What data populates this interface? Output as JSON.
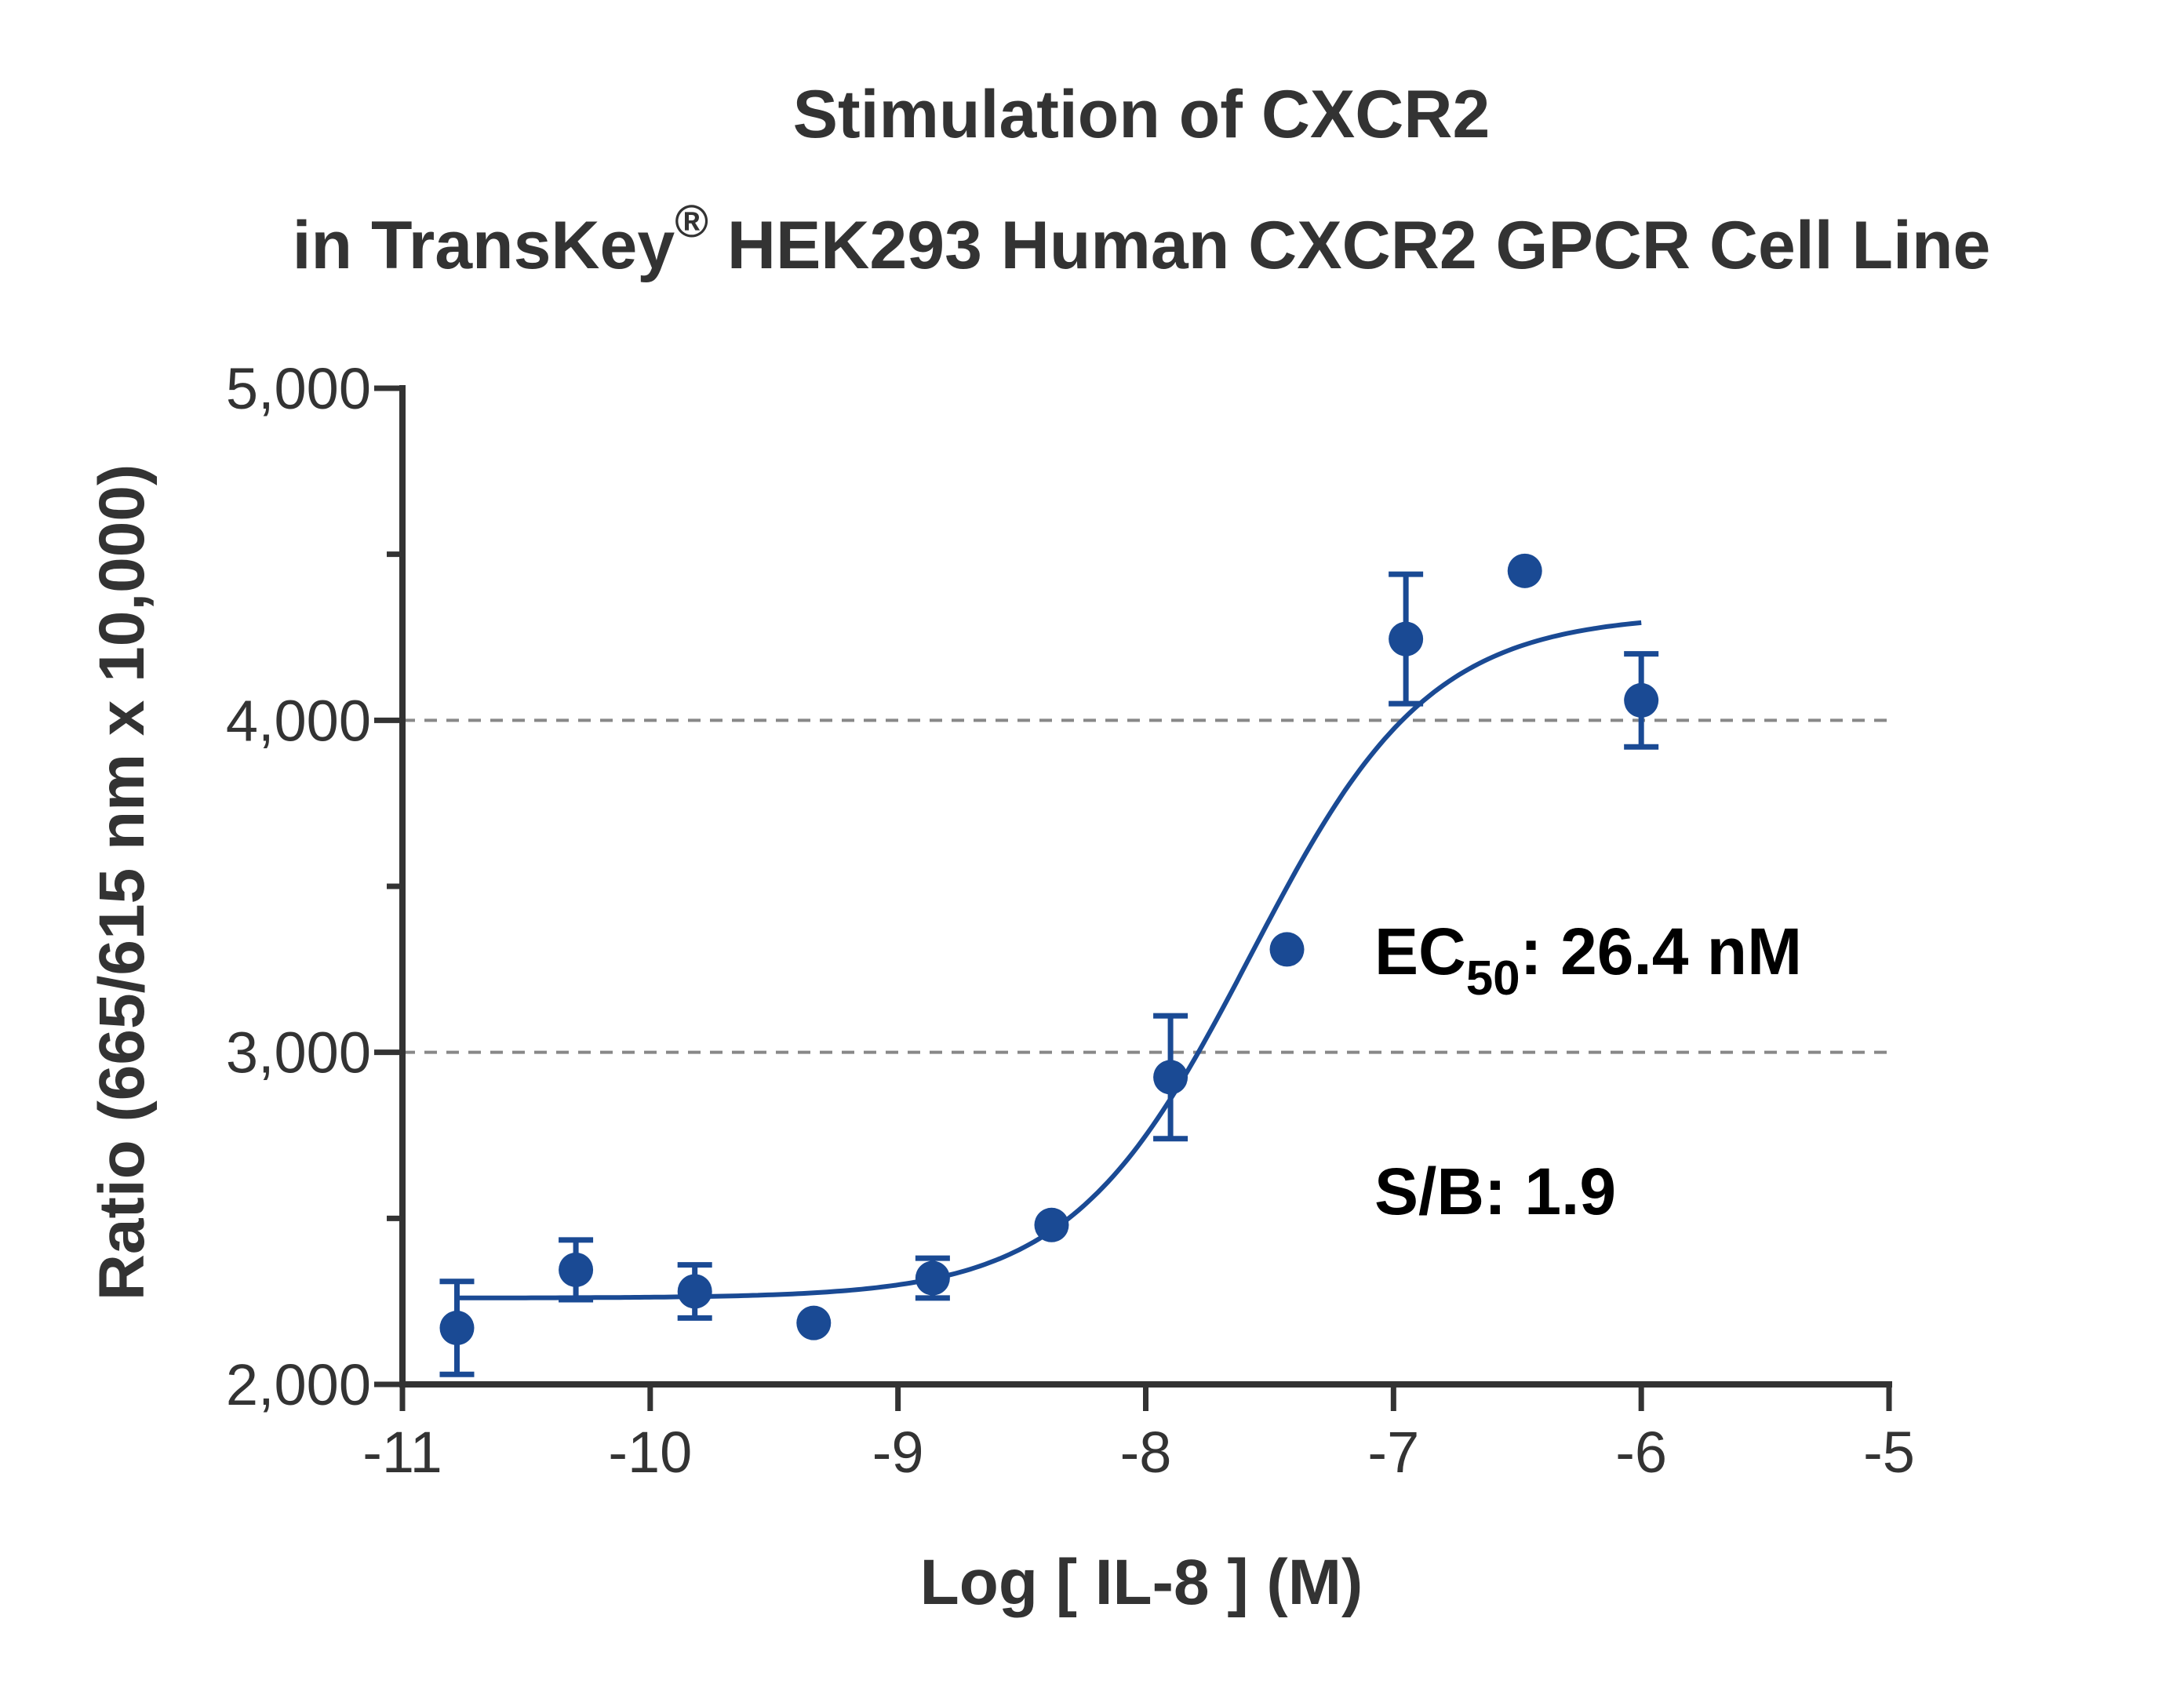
{
  "chart_data": {
    "type": "scatter",
    "title_line1": "Stimulation of CXCR2",
    "title_line2_pre": "in TransKey",
    "title_line2_reg": "®",
    "title_line2_post": " HEK293 Human CXCR2 GPCR Cell Line",
    "xlabel": "Log [ IL-8 ]  (M)",
    "ylabel": "Ratio (665/615 nm x 10,000)",
    "xlim": [
      -11,
      -5
    ],
    "ylim": [
      2000,
      5000
    ],
    "x_ticks": [
      -11,
      -10,
      -9,
      -8,
      -7,
      -6,
      -5
    ],
    "x_tick_labels": [
      "-11",
      "-10",
      "-9",
      "-8",
      "-7",
      "-6",
      "-5"
    ],
    "y_ticks": [
      2000,
      3000,
      4000,
      5000
    ],
    "y_tick_labels": [
      "2,000",
      "3,000",
      "4,000",
      "5,000"
    ],
    "y_minor_ticks": [
      2500,
      3500,
      4500
    ],
    "reference_lines_y": [
      3000,
      4000
    ],
    "color": "#1a4a94",
    "reference_line_color": "#888888",
    "axis_color": "#333333",
    "points": [
      {
        "x": -10.78,
        "y": 2170,
        "err": 140
      },
      {
        "x": -10.3,
        "y": 2345,
        "err": 90
      },
      {
        "x": -9.82,
        "y": 2280,
        "err": 80
      },
      {
        "x": -9.34,
        "y": 2185,
        "err": null
      },
      {
        "x": -8.86,
        "y": 2320,
        "err": 60
      },
      {
        "x": -8.38,
        "y": 2480,
        "err": null
      },
      {
        "x": -7.9,
        "y": 2925,
        "err": 185
      },
      {
        "x": -7.43,
        "y": 3310,
        "err": null
      },
      {
        "x": -6.95,
        "y": 4245,
        "err": 195
      },
      {
        "x": -6.47,
        "y": 4450,
        "err": null
      },
      {
        "x": -6.0,
        "y": 4060,
        "err": 140
      }
    ],
    "fit": {
      "bottom": 2260,
      "top": 4320,
      "logEC50": -7.578,
      "hill": 1.2,
      "x_range": [
        -10.78,
        -6.0
      ]
    },
    "annotation_ec50_pre": "EC",
    "annotation_ec50_sub": "50",
    "annotation_ec50_post": ": 26.4 nM",
    "annotation_sb": "S/B: 1.9"
  }
}
